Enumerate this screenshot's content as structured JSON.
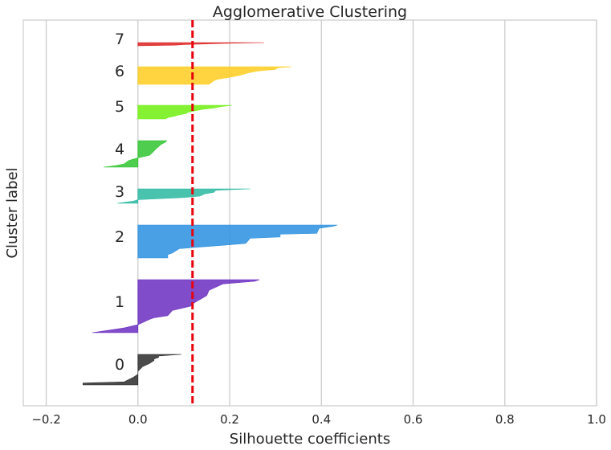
{
  "chart_data": {
    "type": "area",
    "title": "Agglomerative Clustering",
    "xlabel": "Silhouette coefficients",
    "ylabel": "Cluster label",
    "xlim": [
      -0.25,
      1.0
    ],
    "x_ticks": [
      "−0.2",
      "0.0",
      "0.2",
      "0.4",
      "0.6",
      "0.8",
      "1.0"
    ],
    "x_tick_values": [
      -0.2,
      0.0,
      0.2,
      0.4,
      0.6,
      0.8,
      1.0
    ],
    "grid": "vertical",
    "average_silhouette": 0.119,
    "average_line_color": "#e8000b",
    "clusters": [
      {
        "label": "0",
        "color": "#2b2b2b",
        "profile": [
          [
            0,
            0.095
          ],
          [
            0.05,
            0.045
          ],
          [
            0.1,
            0.045
          ],
          [
            0.15,
            0.035
          ],
          [
            0.2,
            0.035
          ],
          [
            0.3,
            0.025
          ],
          [
            0.4,
            0.01
          ],
          [
            0.48,
            0.005
          ],
          [
            0.55,
            0.0
          ],
          [
            0.65,
            0.0
          ],
          [
            0.75,
            -0.01
          ],
          [
            0.9,
            -0.03
          ],
          [
            0.94,
            -0.12
          ],
          [
            1,
            -0.12
          ]
        ]
      },
      {
        "label": "1",
        "color": "#6a2dbf",
        "profile": [
          [
            0,
            0.265
          ],
          [
            0.03,
            0.255
          ],
          [
            0.08,
            0.185
          ],
          [
            0.2,
            0.155
          ],
          [
            0.3,
            0.15
          ],
          [
            0.45,
            0.12
          ],
          [
            0.5,
            0.115
          ],
          [
            0.58,
            0.075
          ],
          [
            0.68,
            0.065
          ],
          [
            0.72,
            0.035
          ],
          [
            0.75,
            0.025
          ],
          [
            0.85,
            0.0
          ],
          [
            0.91,
            -0.03
          ],
          [
            0.95,
            -0.06
          ],
          [
            1,
            -0.1
          ]
        ]
      },
      {
        "label": "2",
        "color": "#2a8fe0",
        "profile": [
          [
            0,
            0.435
          ],
          [
            0.04,
            0.425
          ],
          [
            0.1,
            0.395
          ],
          [
            0.25,
            0.39
          ],
          [
            0.28,
            0.31
          ],
          [
            0.36,
            0.31
          ],
          [
            0.4,
            0.245
          ],
          [
            0.56,
            0.235
          ],
          [
            0.72,
            0.09
          ],
          [
            0.85,
            0.075
          ],
          [
            0.9,
            0.065
          ],
          [
            1,
            0.065
          ]
        ]
      },
      {
        "label": "3",
        "color": "#2ab8a0",
        "profile": [
          [
            0,
            0.245
          ],
          [
            0.1,
            0.17
          ],
          [
            0.25,
            0.165
          ],
          [
            0.35,
            0.145
          ],
          [
            0.5,
            0.135
          ],
          [
            0.6,
            0.1
          ],
          [
            0.75,
            0.0
          ],
          [
            0.85,
            -0.01
          ],
          [
            1,
            -0.045
          ]
        ]
      },
      {
        "label": "4",
        "color": "#2fc42f",
        "profile": [
          [
            0,
            0.063
          ],
          [
            0.05,
            0.06
          ],
          [
            0.15,
            0.05
          ],
          [
            0.3,
            0.04
          ],
          [
            0.48,
            0.03
          ],
          [
            0.55,
            0.025
          ],
          [
            0.65,
            0.0
          ],
          [
            0.75,
            -0.02
          ],
          [
            0.88,
            -0.03
          ],
          [
            0.95,
            -0.05
          ],
          [
            1,
            -0.075
          ]
        ]
      },
      {
        "label": "5",
        "color": "#6ff00f",
        "profile": [
          [
            0,
            0.205
          ],
          [
            0.1,
            0.18
          ],
          [
            0.2,
            0.165
          ],
          [
            0.3,
            0.14
          ],
          [
            0.4,
            0.125
          ],
          [
            0.5,
            0.11
          ],
          [
            0.6,
            0.105
          ],
          [
            0.7,
            0.09
          ],
          [
            0.8,
            0.08
          ],
          [
            0.9,
            0.065
          ],
          [
            1,
            0.06
          ]
        ]
      },
      {
        "label": "6",
        "color": "#ffcd1f",
        "profile": [
          [
            0,
            0.335
          ],
          [
            0.06,
            0.305
          ],
          [
            0.15,
            0.3
          ],
          [
            0.25,
            0.26
          ],
          [
            0.35,
            0.24
          ],
          [
            0.5,
            0.22
          ],
          [
            0.6,
            0.2
          ],
          [
            0.7,
            0.175
          ],
          [
            0.8,
            0.165
          ],
          [
            0.9,
            0.16
          ],
          [
            1,
            0.155
          ]
        ]
      },
      {
        "label": "7",
        "color": "#dd2020",
        "profile": [
          [
            0,
            0.275
          ],
          [
            0.2,
            0.2
          ],
          [
            0.4,
            0.15
          ],
          [
            0.6,
            0.1
          ],
          [
            0.8,
            0.08
          ],
          [
            1,
            0.0
          ]
        ]
      }
    ]
  }
}
